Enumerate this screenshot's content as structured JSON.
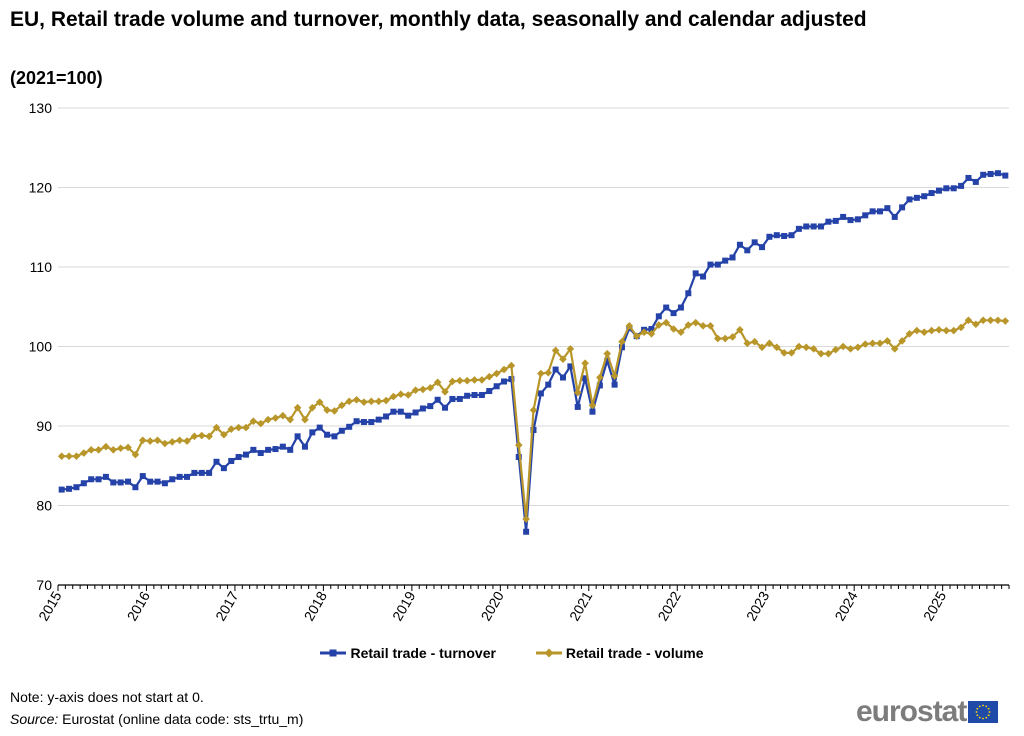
{
  "chart_data": {
    "type": "line",
    "title": "EU, Retail trade volume and turnover, monthly data, seasonally and calendar adjusted",
    "subtitle": "(2021=100)",
    "xlabel": "",
    "ylabel": "",
    "x_start": "2015-01",
    "x_end": "2025-09",
    "x_tick_labels": [
      "2015",
      "2016",
      "2017",
      "2018",
      "2019",
      "2020",
      "2021",
      "2022",
      "2023",
      "2024",
      "2025"
    ],
    "ylim": [
      70,
      130
    ],
    "y_ticks": [
      70,
      80,
      90,
      100,
      110,
      120,
      130
    ],
    "grid": "horizontal",
    "legend_position": "bottom",
    "series": [
      {
        "name": "Retail trade - turnover",
        "color": "#2442a8",
        "marker": "square",
        "values": [
          82.0,
          82.1,
          82.3,
          82.8,
          83.3,
          83.3,
          83.6,
          82.9,
          82.9,
          83.0,
          82.3,
          83.7,
          83.0,
          83.0,
          82.8,
          83.3,
          83.6,
          83.6,
          84.1,
          84.1,
          84.1,
          85.5,
          84.7,
          85.6,
          86.1,
          86.4,
          87.0,
          86.6,
          87.0,
          87.1,
          87.4,
          87.0,
          88.7,
          87.4,
          89.2,
          89.8,
          88.9,
          88.7,
          89.4,
          89.9,
          90.6,
          90.5,
          90.5,
          90.8,
          91.2,
          91.8,
          91.8,
          91.3,
          91.7,
          92.2,
          92.5,
          93.3,
          92.3,
          93.4,
          93.4,
          93.8,
          93.9,
          93.9,
          94.4,
          95.0,
          95.6,
          95.9,
          86.1,
          76.7,
          89.5,
          94.1,
          95.2,
          97.1,
          96.1,
          97.5,
          92.4,
          96.0,
          91.8,
          95.1,
          98.2,
          95.2,
          99.9,
          102.3,
          101.3,
          102.1,
          102.2,
          103.8,
          104.9,
          104.2,
          104.9,
          106.7,
          109.2,
          108.8,
          110.3,
          110.3,
          110.8,
          111.2,
          112.8,
          112.1,
          113.1,
          112.5,
          113.8,
          114.0,
          113.9,
          114.0,
          114.8,
          115.1,
          115.1,
          115.1,
          115.7,
          115.8,
          116.3,
          115.9,
          116.0,
          116.5,
          117.0,
          117.0,
          117.4,
          116.3,
          117.5,
          118.5,
          118.7,
          118.9,
          119.3,
          119.6,
          119.9,
          119.9,
          120.2,
          121.2,
          120.7,
          121.6,
          121.7,
          121.8,
          121.5
        ]
      },
      {
        "name": "Retail trade - volume",
        "color": "#b8962a",
        "marker": "diamond",
        "values": [
          86.2,
          86.2,
          86.2,
          86.6,
          87.0,
          87.0,
          87.4,
          87.0,
          87.2,
          87.3,
          86.4,
          88.2,
          88.1,
          88.2,
          87.8,
          88.0,
          88.2,
          88.1,
          88.7,
          88.8,
          88.7,
          89.8,
          88.9,
          89.6,
          89.8,
          89.8,
          90.6,
          90.3,
          90.8,
          91.0,
          91.3,
          90.8,
          92.3,
          90.8,
          92.3,
          93.0,
          92.0,
          91.9,
          92.6,
          93.1,
          93.3,
          93.0,
          93.1,
          93.1,
          93.2,
          93.7,
          94.0,
          93.9,
          94.5,
          94.6,
          94.8,
          95.5,
          94.3,
          95.6,
          95.7,
          95.7,
          95.8,
          95.8,
          96.2,
          96.6,
          97.1,
          97.6,
          87.6,
          78.3,
          92.0,
          96.6,
          96.7,
          99.5,
          98.4,
          99.7,
          94.2,
          97.9,
          92.6,
          96.1,
          99.1,
          96.3,
          100.6,
          102.6,
          101.3,
          101.8,
          101.6,
          102.7,
          103.0,
          102.2,
          101.8,
          102.7,
          103.0,
          102.6,
          102.6,
          101.0,
          101.0,
          101.2,
          102.1,
          100.4,
          100.6,
          99.9,
          100.4,
          99.9,
          99.2,
          99.2,
          100.0,
          99.9,
          99.7,
          99.1,
          99.1,
          99.6,
          100.0,
          99.7,
          99.9,
          100.3,
          100.4,
          100.4,
          100.7,
          99.7,
          100.7,
          101.6,
          102.0,
          101.8,
          102.0,
          102.1,
          102.0,
          102.0,
          102.4,
          103.3,
          102.8,
          103.3,
          103.3,
          103.3,
          103.2
        ]
      }
    ]
  },
  "footer": {
    "note": "Note: y-axis does not start at 0.",
    "source_label": "Source:",
    "source_text": " Eurostat (online data code: sts_trtu_m)",
    "logo_text": "eurostat"
  }
}
